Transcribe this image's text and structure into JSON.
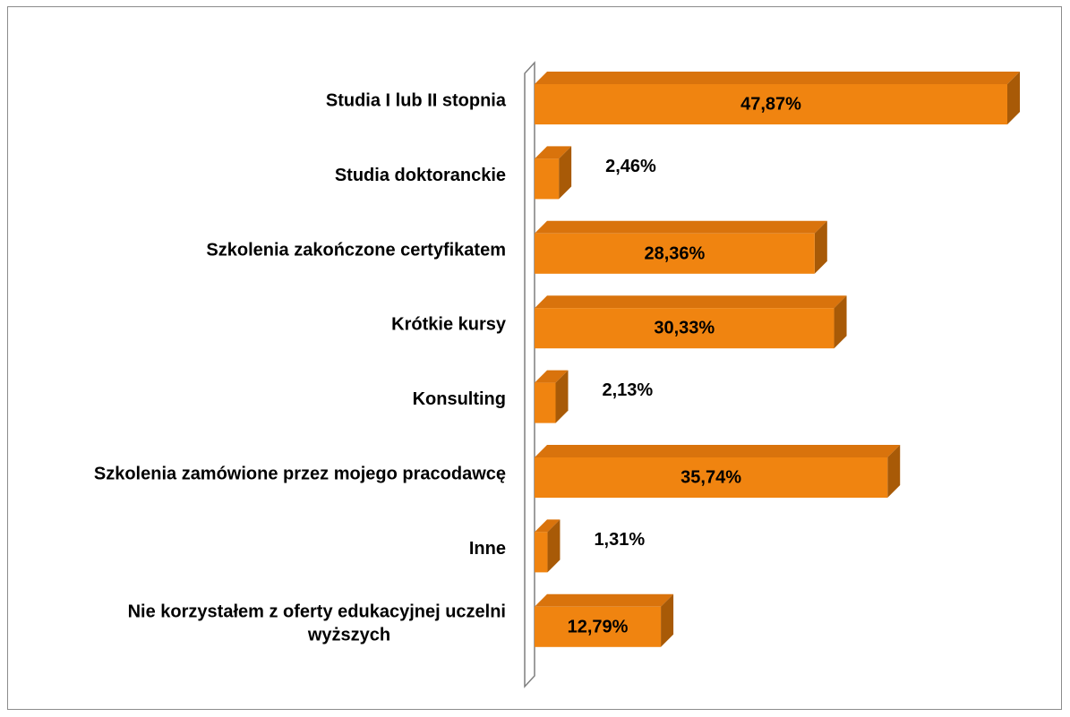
{
  "chart_data": {
    "type": "bar",
    "orientation": "horizontal",
    "three_d": true,
    "title": "",
    "xlabel": "",
    "ylabel": "",
    "xlim": [
      0,
      50
    ],
    "grid": false,
    "legend": "none",
    "categories": [
      "Studia I lub II stopnia",
      "Studia doktoranckie",
      "Szkolenia zakończone certyfikatem",
      "Krótkie kursy",
      "Konsulting",
      "Szkolenia zamówione przez mojego pracodawcę",
      "Inne",
      "Nie korzystałem z oferty edukacyjnej uczelni wyższych"
    ],
    "category_lines": [
      [
        "Studia I lub II stopnia"
      ],
      [
        "Studia doktoranckie"
      ],
      [
        "Szkolenia zakończone certyfikatem"
      ],
      [
        "Krótkie kursy"
      ],
      [
        "Konsulting"
      ],
      [
        "Szkolenia zamówione przez mojego pracodawcę"
      ],
      [
        "Inne"
      ],
      [
        "Nie korzystałem z oferty edukacyjnej uczelni",
        "wyższych"
      ]
    ],
    "values": [
      47.87,
      2.46,
      28.36,
      30.33,
      2.13,
      35.74,
      1.31,
      12.79
    ],
    "data_labels": [
      "47,87%",
      "2,46%",
      "28,36%",
      "30,33%",
      "2,13%",
      "35,74%",
      "1,31%",
      "12,79%"
    ],
    "colors": {
      "bar_front": "#F08410",
      "bar_top": "#D9730C",
      "bar_side": "#A85A07",
      "axis_wall": "#7f7f7f"
    }
  }
}
